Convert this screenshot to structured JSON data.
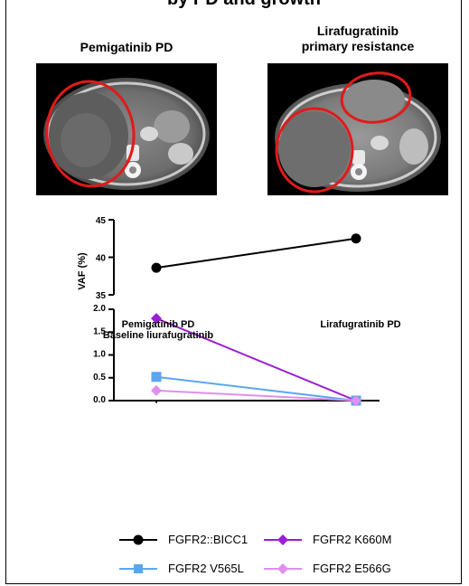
{
  "header_fragment": "by PD and growth",
  "panels": [
    {
      "title": "Pemigatinib PD"
    },
    {
      "title_line1": "Lirafugratinib",
      "title_line2": "primary resistance"
    }
  ],
  "chart_data": {
    "type": "line",
    "ylabel": "VAF (%)",
    "x_categories": [
      "Pemigatinib PD\nBaseline liurafugratinib",
      "Lirafugratinib PD"
    ],
    "x_label_lines": [
      [
        "Pemigatinib PD",
        "Baseline liurafugratinib"
      ],
      [
        "Lirafugratinib PD"
      ]
    ],
    "axis_break": true,
    "upper_ylim": [
      35,
      45
    ],
    "upper_ticks": [
      "35",
      "40",
      "45"
    ],
    "lower_ylim": [
      0,
      2.0
    ],
    "lower_ticks": [
      "0.0",
      "0.5",
      "1.0",
      "1.5",
      "2.0"
    ],
    "series": [
      {
        "name": "FGFR2::BICC1",
        "values": [
          38.6,
          42.5
        ],
        "color": "#000000",
        "marker": "circle"
      },
      {
        "name": "FGFR2 K660M",
        "values": [
          1.8,
          0.0
        ],
        "color": "#9a1ed6",
        "marker": "diamond"
      },
      {
        "name": "FGFR2 V565L",
        "values": [
          0.52,
          0.0
        ],
        "color": "#5aa6f0",
        "marker": "square"
      },
      {
        "name": "FGFR2 E566G",
        "values": [
          0.22,
          0.0
        ],
        "color": "#df8ef0",
        "marker": "diamond"
      }
    ]
  }
}
